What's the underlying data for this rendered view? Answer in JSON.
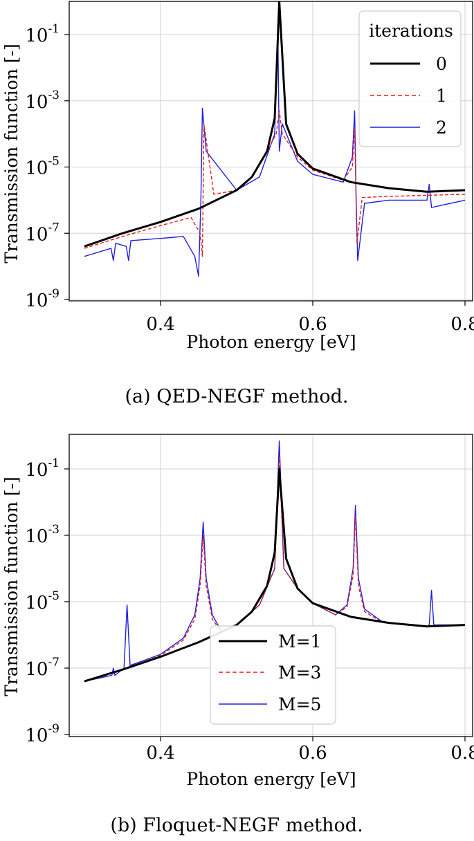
{
  "chart_data": [
    {
      "type": "line",
      "caption": "(a) QED-NEGF method.",
      "xlabel": "Photon energy [eV]",
      "ylabel": "Transmission function [-]",
      "yscale": "log",
      "xlim": [
        0.28,
        0.81
      ],
      "ylim": [
        1e-09,
        1
      ],
      "xticks": [
        "0.4",
        "0.6",
        "0.8"
      ],
      "xtick_values": [
        0.4,
        0.6,
        0.8
      ],
      "ytick_exponents": [
        "-1",
        "-3",
        "-5",
        "-7",
        "-9"
      ],
      "ytick_base": "10",
      "legend_title": "iterations",
      "legend_loc": "upper right",
      "grid": true,
      "series": [
        {
          "name": "0",
          "color": "#000000",
          "style": "solid",
          "x": [
            0.3,
            0.35,
            0.4,
            0.45,
            0.5,
            0.52,
            0.54,
            0.55,
            0.556,
            0.565,
            0.58,
            0.6,
            0.65,
            0.7,
            0.75,
            0.8
          ],
          "y": [
            4e-08,
            1e-07,
            2.2e-07,
            5.5e-07,
            2e-06,
            5e-06,
            3e-05,
            0.0003,
            1,
            0.0002,
            2.5e-05,
            9e-06,
            3.5e-06,
            2.3e-06,
            1.8e-06,
            2e-06
          ]
        },
        {
          "name": "1",
          "color": "#e31a1c",
          "style": "dashed",
          "x": [
            0.3,
            0.35,
            0.4,
            0.44,
            0.452,
            0.455,
            0.457,
            0.47,
            0.5,
            0.52,
            0.54,
            0.552,
            0.556,
            0.56,
            0.58,
            0.6,
            0.64,
            0.652,
            0.655,
            0.658,
            0.665,
            0.7,
            0.75,
            0.8
          ],
          "y": [
            3.5e-08,
            8e-08,
            1.7e-07,
            3e-07,
            1e-07,
            2e-08,
            0.0002,
            1.5e-06,
            2e-06,
            5e-06,
            3e-05,
            0.0001,
            0.0005,
            0.0001,
            2e-05,
            8e-06,
            4e-06,
            1e-05,
            0.00015,
            5e-08,
            1.2e-06,
            1.3e-06,
            1.4e-06,
            1.5e-06
          ]
        },
        {
          "name": "2",
          "color": "#1f1fdd",
          "style": "solid",
          "x": [
            0.3,
            0.335,
            0.338,
            0.341,
            0.355,
            0.358,
            0.361,
            0.4,
            0.43,
            0.445,
            0.45,
            0.453,
            0.455,
            0.46,
            0.5,
            0.53,
            0.55,
            0.554,
            0.556,
            0.56,
            0.58,
            0.6,
            0.64,
            0.652,
            0.655,
            0.657,
            0.659,
            0.668,
            0.7,
            0.75,
            0.753,
            0.756,
            0.8
          ],
          "y": [
            2e-08,
            3.5e-08,
            1.5e-08,
            5e-08,
            4e-08,
            1.5e-08,
            6e-08,
            7e-08,
            8e-08,
            2e-08,
            5e-09,
            1e-06,
            0.0006,
            3e-05,
            2e-06,
            5e-06,
            0.0001,
            0.2,
            3e-05,
            0.0002,
            1.5e-05,
            6e-06,
            3.5e-06,
            2e-05,
            0.0005,
            1e-06,
            1.5e-08,
            8e-07,
            1e-06,
            1e-06,
            3e-06,
            6e-07,
            1e-06
          ]
        }
      ]
    },
    {
      "type": "line",
      "caption": "(b) Floquet-NEGF method.",
      "xlabel": "Photon energy [eV]",
      "ylabel": "Transmission function [-]",
      "yscale": "log",
      "xlim": [
        0.28,
        0.81
      ],
      "ylim": [
        1e-09,
        1
      ],
      "xticks": [
        "0.4",
        "0.6",
        "0.8"
      ],
      "xtick_values": [
        0.4,
        0.6,
        0.8
      ],
      "ytick_exponents": [
        "-1",
        "-3",
        "-5",
        "-7",
        "-9"
      ],
      "ytick_base": "10",
      "legend_title": "",
      "legend_loc": "lower center",
      "grid": true,
      "series": [
        {
          "name": "M=1",
          "color": "#000000",
          "style": "solid",
          "x": [
            0.3,
            0.35,
            0.4,
            0.45,
            0.5,
            0.52,
            0.54,
            0.55,
            0.556,
            0.565,
            0.58,
            0.6,
            0.65,
            0.7,
            0.75,
            0.8
          ],
          "y": [
            4e-08,
            9e-08,
            2.2e-07,
            6e-07,
            2e-06,
            5e-06,
            3e-05,
            0.0003,
            0.1,
            0.0002,
            2.5e-05,
            9e-06,
            3.5e-06,
            2.3e-06,
            1.8e-06,
            2e-06
          ]
        },
        {
          "name": "M=3",
          "color": "#e31a1c",
          "style": "dashed",
          "x": [
            0.3,
            0.35,
            0.4,
            0.43,
            0.445,
            0.452,
            0.456,
            0.46,
            0.468,
            0.48,
            0.5,
            0.53,
            0.55,
            0.556,
            0.562,
            0.58,
            0.6,
            0.63,
            0.645,
            0.653,
            0.656,
            0.66,
            0.668,
            0.69,
            0.7,
            0.75,
            0.8
          ],
          "y": [
            4e-08,
            9e-08,
            2.4e-07,
            7e-07,
            3e-06,
            3e-05,
            0.001,
            3e-05,
            3e-06,
            1.2e-06,
            2e-06,
            8e-06,
            0.0001,
            0.25,
            0.0001,
            2.5e-05,
            9e-06,
            4e-06,
            7e-06,
            6e-05,
            0.004,
            3e-05,
            5e-06,
            2.5e-06,
            2.3e-06,
            1.8e-06,
            2e-06
          ]
        },
        {
          "name": "M=5",
          "color": "#1f1fdd",
          "style": "solid",
          "x": [
            0.3,
            0.336,
            0.338,
            0.34,
            0.352,
            0.356,
            0.36,
            0.4,
            0.43,
            0.445,
            0.452,
            0.456,
            0.46,
            0.468,
            0.48,
            0.5,
            0.53,
            0.55,
            0.556,
            0.562,
            0.58,
            0.6,
            0.63,
            0.645,
            0.653,
            0.656,
            0.66,
            0.668,
            0.69,
            0.7,
            0.75,
            0.753,
            0.756,
            0.759,
            0.8
          ],
          "y": [
            4e-08,
            6e-08,
            1e-07,
            6e-08,
            1e-07,
            8e-06,
            1.2e-07,
            2.6e-07,
            8e-07,
            4e-06,
            5e-05,
            0.0025,
            5e-05,
            4e-06,
            1.3e-06,
            2e-06,
            8e-06,
            0.0001,
            0.7,
            0.0001,
            2.5e-05,
            9e-06,
            4e-06,
            8e-06,
            0.0001,
            0.008,
            5e-05,
            6e-06,
            2.6e-06,
            2.3e-06,
            1.8e-06,
            2e-06,
            2.2e-05,
            2e-06,
            2e-06
          ]
        }
      ]
    }
  ]
}
